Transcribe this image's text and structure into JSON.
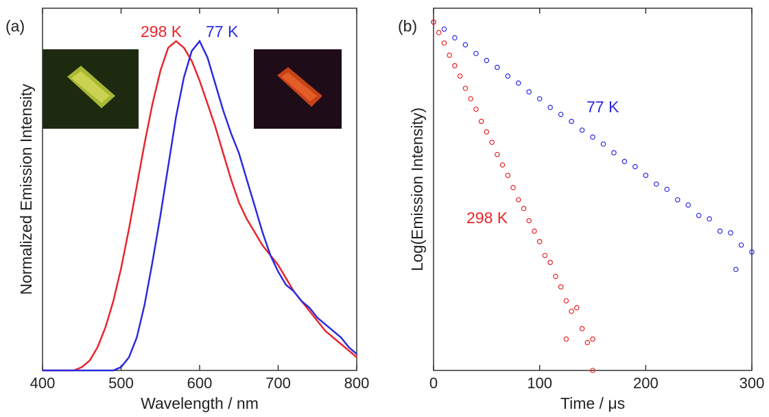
{
  "chart_data": [
    {
      "type": "line",
      "panel_label": "(a)",
      "xlabel": "Wavelength / nm",
      "ylabel": "Normalized Emission Intensity",
      "x": [
        400,
        410,
        420,
        430,
        440,
        450,
        460,
        470,
        480,
        490,
        500,
        510,
        520,
        530,
        540,
        550,
        560,
        570,
        580,
        590,
        600,
        610,
        620,
        630,
        640,
        650,
        660,
        670,
        680,
        690,
        700,
        710,
        720,
        730,
        740,
        750,
        760,
        770,
        780,
        790,
        800
      ],
      "series": [
        {
          "name": "298 K",
          "color": "#e8242a",
          "values": [
            0,
            0,
            0,
            0,
            0,
            0.01,
            0.03,
            0.07,
            0.13,
            0.21,
            0.31,
            0.43,
            0.56,
            0.69,
            0.81,
            0.91,
            0.98,
            1.0,
            0.98,
            0.94,
            0.88,
            0.81,
            0.74,
            0.66,
            0.58,
            0.51,
            0.46,
            0.42,
            0.38,
            0.35,
            0.32,
            0.28,
            0.24,
            0.21,
            0.18,
            0.15,
            0.12,
            0.1,
            0.08,
            0.06,
            0.04
          ]
        },
        {
          "name": "77 K",
          "color": "#2a2ae0",
          "values": [
            0,
            0,
            0,
            0,
            0,
            0,
            0,
            0,
            0,
            0,
            0.01,
            0.04,
            0.1,
            0.2,
            0.33,
            0.47,
            0.62,
            0.77,
            0.89,
            0.97,
            1.0,
            0.95,
            0.87,
            0.79,
            0.72,
            0.66,
            0.58,
            0.5,
            0.42,
            0.35,
            0.3,
            0.26,
            0.24,
            0.21,
            0.19,
            0.16,
            0.14,
            0.12,
            0.1,
            0.07,
            0.05
          ]
        }
      ],
      "xlim": [
        400,
        800
      ],
      "xticks": [
        400,
        500,
        600,
        700,
        800
      ],
      "ylim": [
        0,
        1.1
      ]
    },
    {
      "type": "scatter",
      "panel_label": "(b)",
      "xlabel": "Time / μs",
      "ylabel": "Log(Emission Intensity)",
      "series": [
        {
          "name": "77 K",
          "color": "#2a2ae0",
          "x": [
            0,
            10,
            20,
            30,
            40,
            50,
            60,
            70,
            80,
            90,
            100,
            110,
            120,
            130,
            140,
            150,
            160,
            170,
            180,
            190,
            200,
            210,
            220,
            230,
            240,
            250,
            260,
            270,
            280,
            285,
            290,
            300
          ],
          "values": [
            1.0,
            0.98,
            0.955,
            0.935,
            0.91,
            0.89,
            0.87,
            0.845,
            0.825,
            0.8,
            0.78,
            0.755,
            0.735,
            0.715,
            0.69,
            0.67,
            0.65,
            0.625,
            0.6,
            0.585,
            0.56,
            0.535,
            0.52,
            0.49,
            0.475,
            0.445,
            0.435,
            0.4,
            0.395,
            0.29,
            0.36,
            0.34
          ]
        },
        {
          "name": "298 K",
          "color": "#e8242a",
          "x": [
            0,
            5,
            10,
            15,
            20,
            25,
            30,
            35,
            40,
            45,
            50,
            55,
            60,
            65,
            70,
            75,
            80,
            85,
            90,
            95,
            100,
            105,
            110,
            115,
            120,
            125,
            125,
            130,
            135,
            140,
            145,
            150,
            150
          ],
          "values": [
            1.0,
            0.97,
            0.94,
            0.905,
            0.875,
            0.845,
            0.81,
            0.78,
            0.75,
            0.715,
            0.685,
            0.655,
            0.62,
            0.59,
            0.56,
            0.525,
            0.49,
            0.465,
            0.43,
            0.4,
            0.37,
            0.33,
            0.31,
            0.27,
            0.24,
            0.2,
            0.09,
            0.17,
            0.18,
            0.12,
            0.08,
            0.09,
            0.0
          ]
        }
      ],
      "xlim": [
        0,
        300
      ],
      "xticks": [
        0,
        100,
        200,
        300
      ],
      "ylim": [
        0,
        1.04
      ]
    }
  ]
}
